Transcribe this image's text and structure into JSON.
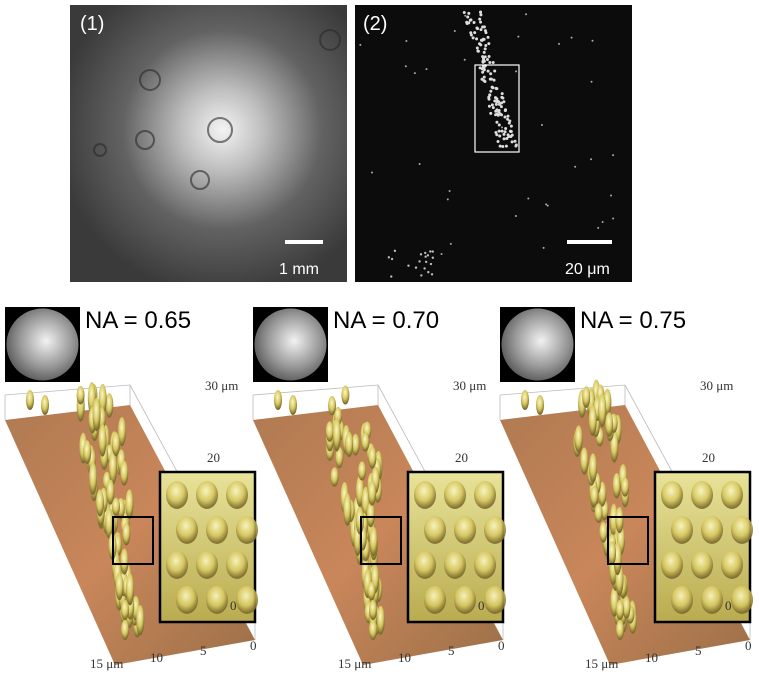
{
  "top_panels": [
    {
      "label": "(1)",
      "scale_bar": "1 mm"
    },
    {
      "label": "(2)",
      "scale_bar": "20 μm"
    }
  ],
  "surface_panels": [
    {
      "title": "NA = 0.65",
      "y_axis_labels": [
        "30 μm",
        "20",
        "0"
      ],
      "x_axis_labels": [
        "15 μm",
        "10",
        "5",
        "0"
      ]
    },
    {
      "title": "NA = 0.70",
      "y_axis_labels": [
        "30 μm",
        "20",
        "0"
      ],
      "x_axis_labels": [
        "15 μm",
        "10",
        "5",
        "0"
      ]
    },
    {
      "title": "NA = 0.75",
      "y_axis_labels": [
        "30 μm",
        "20",
        "0"
      ],
      "x_axis_labels": [
        "15 μm",
        "10",
        "5",
        "0"
      ]
    }
  ]
}
